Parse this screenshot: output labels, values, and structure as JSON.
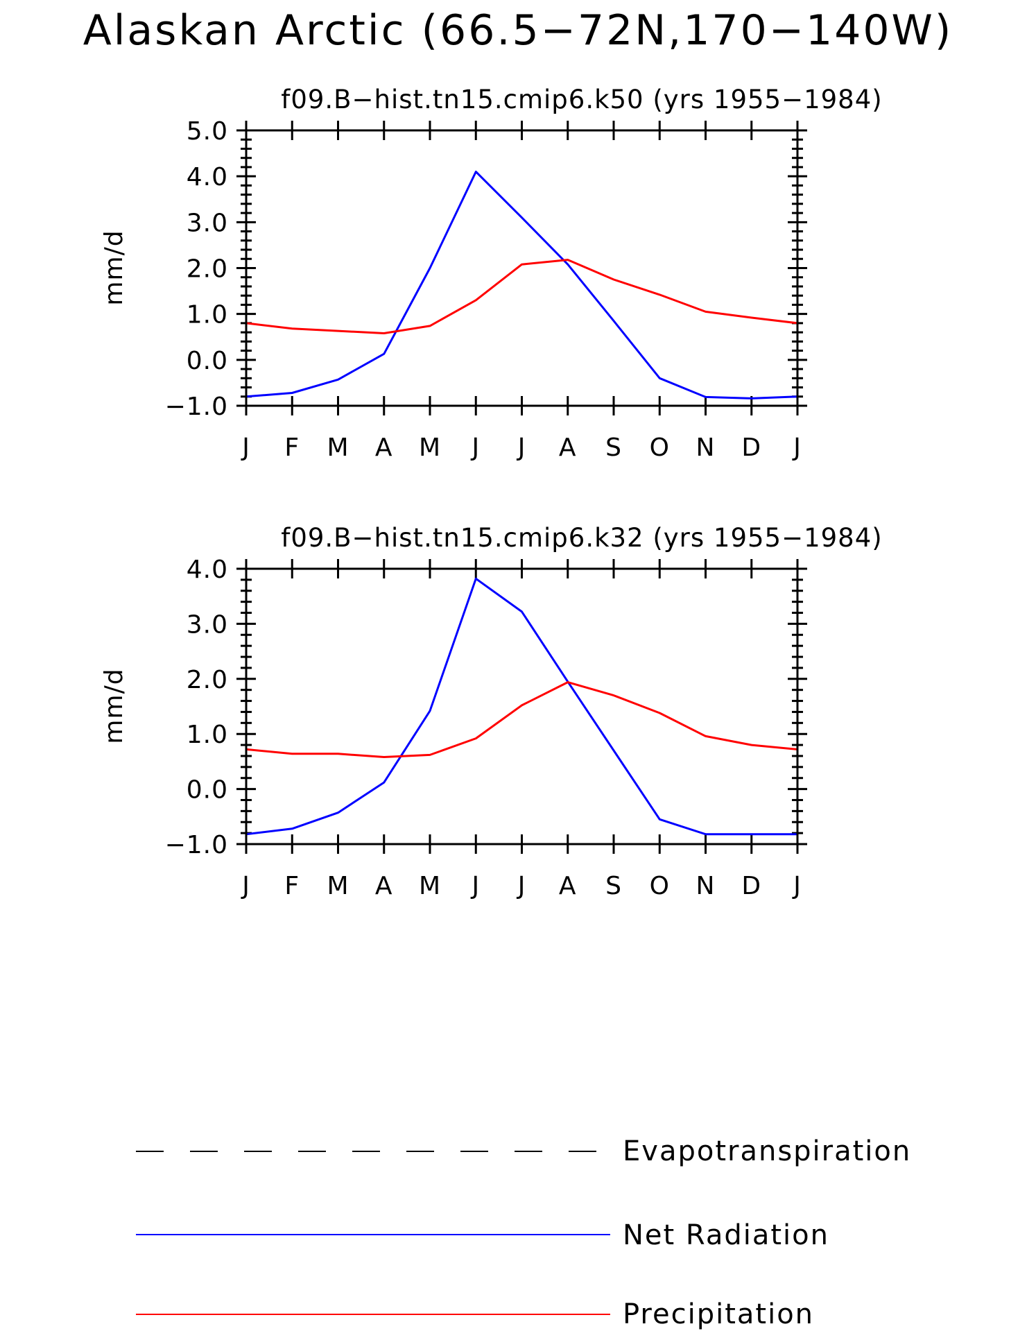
{
  "title": "Alaskan Arctic (66.5−72N,170−140W)",
  "legend": [
    {
      "name": "Evapotranspiration",
      "color": "#000000",
      "dash": "dashed"
    },
    {
      "name": "Net Radiation",
      "color": "#0000ff",
      "dash": "solid"
    },
    {
      "name": "Precipitation",
      "color": "#ff0000",
      "dash": "solid"
    }
  ],
  "chart_data": [
    {
      "type": "line",
      "title": "f09.B−hist.tn15.cmip6.k50 (yrs 1955−1984)",
      "xlabel": "",
      "ylabel": "mm/d",
      "categories": [
        "J",
        "F",
        "M",
        "A",
        "M",
        "J",
        "J",
        "A",
        "S",
        "O",
        "N",
        "D",
        "J"
      ],
      "ylim": [
        -1.0,
        5.0
      ],
      "yticks": [
        "5.0",
        "4.0",
        "3.0",
        "2.0",
        "1.0",
        "0.0",
        "−1.0"
      ],
      "series": [
        {
          "name": "Net Radiation",
          "color": "#0000ff",
          "values": [
            -0.8,
            -0.72,
            -0.43,
            0.13,
            2.0,
            4.1,
            3.1,
            2.08,
            0.85,
            -0.4,
            -0.81,
            -0.84,
            -0.8
          ]
        },
        {
          "name": "Precipitation",
          "color": "#ff0000",
          "values": [
            0.8,
            0.68,
            0.63,
            0.58,
            0.74,
            1.3,
            2.08,
            2.18,
            1.75,
            1.42,
            1.05,
            0.92,
            0.8
          ]
        }
      ]
    },
    {
      "type": "line",
      "title": "f09.B−hist.tn15.cmip6.k32 (yrs 1955−1984)",
      "xlabel": "",
      "ylabel": "mm/d",
      "categories": [
        "J",
        "F",
        "M",
        "A",
        "M",
        "J",
        "J",
        "A",
        "S",
        "O",
        "N",
        "D",
        "J"
      ],
      "ylim": [
        -1.0,
        4.0
      ],
      "yticks": [
        "4.0",
        "3.0",
        "2.0",
        "1.0",
        "0.0",
        "−1.0"
      ],
      "series": [
        {
          "name": "Net Radiation",
          "color": "#0000ff",
          "values": [
            -0.82,
            -0.72,
            -0.43,
            0.12,
            1.42,
            3.82,
            3.22,
            1.95,
            0.7,
            -0.55,
            -0.82,
            -0.82,
            -0.82
          ]
        },
        {
          "name": "Precipitation",
          "color": "#ff0000",
          "values": [
            0.72,
            0.64,
            0.64,
            0.58,
            0.62,
            0.92,
            1.52,
            1.94,
            1.7,
            1.38,
            0.96,
            0.8,
            0.72
          ]
        }
      ]
    }
  ]
}
